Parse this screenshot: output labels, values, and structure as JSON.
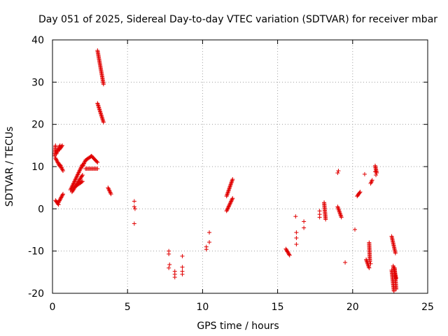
{
  "chart_data": {
    "type": "scatter",
    "title": "Day 051 of 2025, Sidereal Day-to-day VTEC variation (SDTVAR) for receiver mbar",
    "xlabel": "GPS time / hours",
    "ylabel": "SDTVAR / TECUs",
    "xlim": [
      0,
      25
    ],
    "ylim": [
      -20,
      40
    ],
    "xticks": [
      0,
      5,
      10,
      15,
      20,
      25
    ],
    "yticks": [
      -20,
      -10,
      0,
      10,
      20,
      30,
      40
    ],
    "xtick_labels": [
      "0",
      "5",
      "10",
      "15",
      "20",
      "25"
    ],
    "ytick_labels": [
      "-20",
      "-10",
      "0",
      "10",
      "20",
      "30",
      "40"
    ],
    "grid": true,
    "marker": "+",
    "color": "#e00000",
    "series": [
      {
        "name": "SDTVAR",
        "segments": [
          [
            0.15,
            12.5,
            0.2,
            15.0
          ],
          [
            0.25,
            13.0,
            0.5,
            15.0
          ],
          [
            0.45,
            14.0,
            0.65,
            15.0
          ],
          [
            0.2,
            12.0,
            0.5,
            10.0
          ],
          [
            0.5,
            10.5,
            0.7,
            9.0
          ],
          [
            0.2,
            2.0,
            0.4,
            1.0
          ],
          [
            0.4,
            1.5,
            0.7,
            3.5
          ],
          [
            1.2,
            4.5,
            2.0,
            10.5
          ],
          [
            1.3,
            4.0,
            2.0,
            8.0
          ],
          [
            1.6,
            5.5,
            2.0,
            6.5
          ],
          [
            2.0,
            10.0,
            2.2,
            11.5
          ],
          [
            2.2,
            11.5,
            2.6,
            12.5
          ],
          [
            2.6,
            12.5,
            3.0,
            11.0
          ],
          [
            2.2,
            9.5,
            3.0,
            9.5
          ],
          [
            3.0,
            37.5,
            3.4,
            29.5
          ],
          [
            3.0,
            25.0,
            3.4,
            20.5
          ],
          [
            3.7,
            5.0,
            3.9,
            3.5
          ],
          [
            11.6,
            -0.5,
            12.0,
            2.5
          ],
          [
            11.6,
            3.0,
            12.0,
            7.0
          ],
          [
            15.55,
            -9.5,
            15.8,
            -11.0
          ],
          [
            18.1,
            1.5,
            18.2,
            -2.5
          ],
          [
            19.0,
            0.5,
            19.25,
            -2.0
          ],
          [
            20.9,
            -12.0,
            21.1,
            -14.0
          ],
          [
            21.1,
            -8.0,
            21.15,
            -12.5
          ],
          [
            22.6,
            -14.5,
            22.75,
            -19.5
          ],
          [
            22.6,
            -6.5,
            22.85,
            -10.5
          ],
          [
            22.7,
            -13.5,
            22.9,
            -16.5
          ],
          [
            22.8,
            -14.0,
            22.9,
            -19.0
          ],
          [
            20.3,
            3.0,
            20.5,
            4.0
          ],
          [
            21.2,
            6.0,
            21.3,
            6.8
          ],
          [
            21.5,
            10.2,
            21.6,
            8.5
          ]
        ],
        "points": [
          [
            5.45,
            1.8
          ],
          [
            5.45,
            0.5
          ],
          [
            5.5,
            0.0
          ],
          [
            5.45,
            -3.5
          ],
          [
            7.75,
            -10.0
          ],
          [
            7.75,
            -10.7
          ],
          [
            7.8,
            -13.2
          ],
          [
            7.75,
            -14.0
          ],
          [
            8.15,
            -14.8
          ],
          [
            8.15,
            -15.5
          ],
          [
            8.15,
            -16.2
          ],
          [
            8.65,
            -11.2
          ],
          [
            8.65,
            -13.8
          ],
          [
            8.65,
            -14.8
          ],
          [
            8.65,
            -15.5
          ],
          [
            10.25,
            -9.0
          ],
          [
            10.25,
            -9.6
          ],
          [
            10.45,
            -5.6
          ],
          [
            10.45,
            -7.9
          ],
          [
            16.2,
            -1.8
          ],
          [
            16.25,
            -5.6
          ],
          [
            16.25,
            -6.9
          ],
          [
            16.25,
            -8.4
          ],
          [
            16.75,
            -3.0
          ],
          [
            16.75,
            -4.5
          ],
          [
            17.8,
            -0.5
          ],
          [
            17.8,
            -1.3
          ],
          [
            17.8,
            -2.0
          ],
          [
            19.0,
            8.5
          ],
          [
            19.05,
            9.0
          ],
          [
            19.5,
            -12.7
          ],
          [
            20.15,
            -4.9
          ],
          [
            20.8,
            8.2
          ],
          [
            21.2,
            -13.0
          ],
          [
            21.5,
            8.8
          ],
          [
            21.55,
            8.0
          ]
        ]
      }
    ]
  }
}
